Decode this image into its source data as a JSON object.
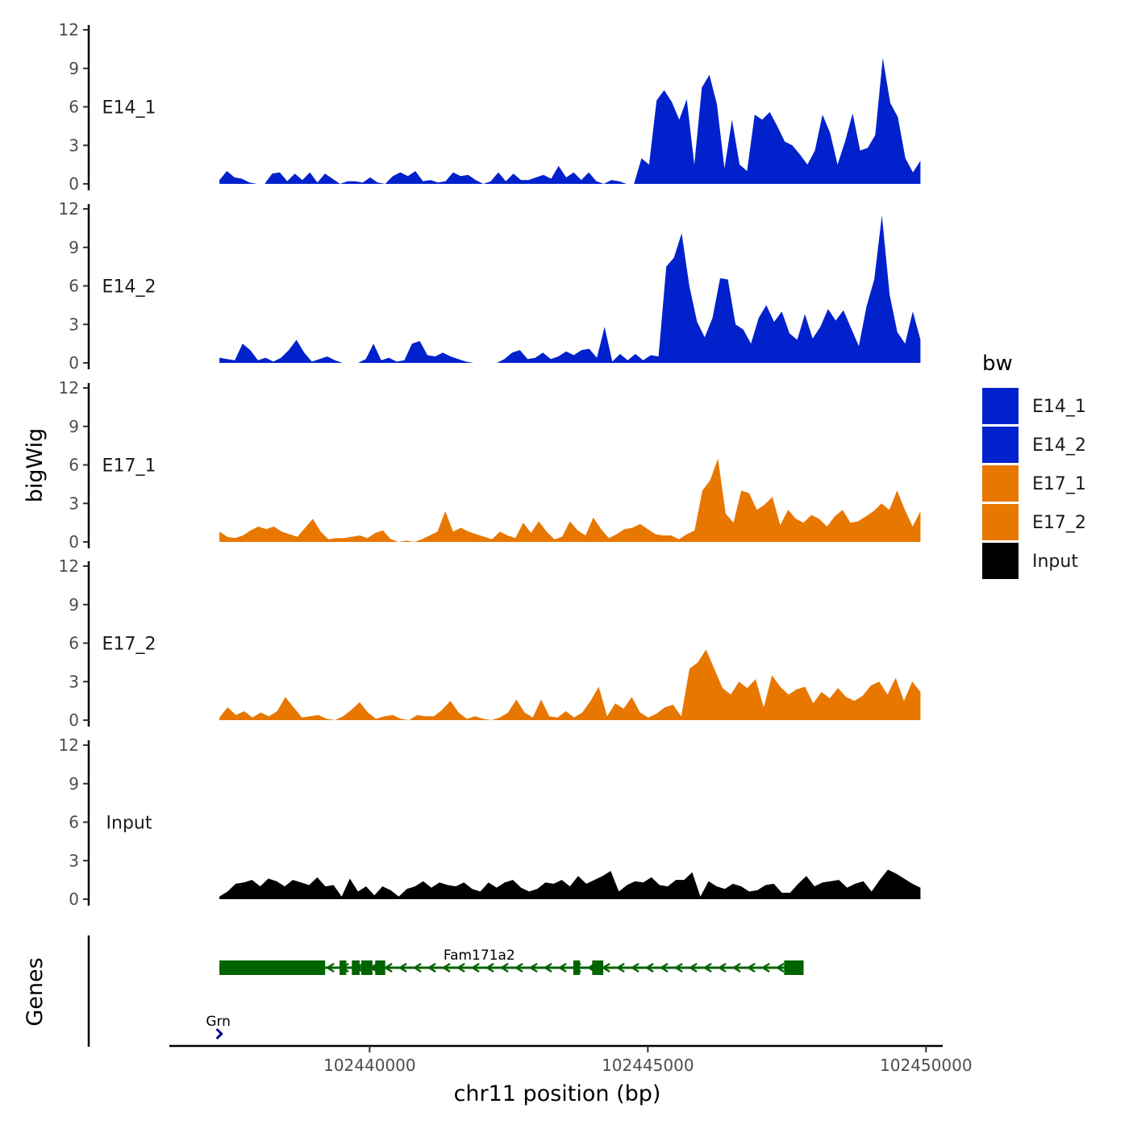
{
  "chart_data": {
    "type": "area",
    "y_axis_title": "bigWig",
    "x_axis_title": "chr11 position (bp)",
    "genes_axis_title": "Genes",
    "xlim": [
      102436400,
      102450300
    ],
    "x_ticks": [
      102440000,
      102445000,
      102450000
    ],
    "x_tick_labels": [
      "102440000",
      "102445000",
      "102450000"
    ],
    "ylim": [
      0,
      12
    ],
    "y_ticks": [
      0,
      3,
      6,
      9,
      12
    ],
    "y_tick_labels": [
      "0",
      "3",
      "6",
      "9",
      "12"
    ],
    "legend": {
      "title": "bw",
      "entries": [
        {
          "label": "E14_1",
          "color": "#0021CC"
        },
        {
          "label": "E14_2",
          "color": "#0021CC"
        },
        {
          "label": "E17_1",
          "color": "#E87700"
        },
        {
          "label": "E17_2",
          "color": "#E87700"
        },
        {
          "label": "Input",
          "color": "#000000"
        }
      ]
    },
    "series": [
      {
        "name": "E14_1",
        "color": "#0021CC",
        "x_start": 102437300,
        "x_end": 102449900,
        "values": [
          0.3,
          1.0,
          0.5,
          0.4,
          0.1,
          0,
          0,
          0.8,
          0.9,
          0.2,
          0.8,
          0.3,
          0.9,
          0.1,
          0.8,
          0.4,
          0,
          0.2,
          0.2,
          0.1,
          0.5,
          0.1,
          0,
          0.6,
          0.9,
          0.6,
          1.0,
          0.2,
          0.3,
          0.1,
          0.2,
          0.9,
          0.6,
          0.7,
          0.3,
          0,
          0.2,
          0.9,
          0.2,
          0.8,
          0.3,
          0.3,
          0.5,
          0.7,
          0.4,
          1.4,
          0.5,
          0.9,
          0.3,
          0.9,
          0.2,
          0,
          0.3,
          0.2,
          0,
          0,
          2.0,
          1.5,
          6.5,
          7.3,
          6.4,
          5.0,
          6.6,
          1.5,
          7.5,
          8.5,
          6.2,
          1.2,
          5.0,
          1.5,
          1.0,
          5.4,
          5.0,
          5.6,
          4.5,
          3.3,
          3.0,
          2.3,
          1.5,
          2.6,
          5.4,
          4.0,
          1.5,
          3.3,
          5.5,
          2.6,
          2.8,
          3.8,
          9.8,
          6.3,
          5.2,
          2.0,
          0.9,
          1.8
        ]
      },
      {
        "name": "E14_2",
        "color": "#0021CC",
        "x_start": 102437300,
        "x_end": 102449900,
        "values": [
          0.4,
          0.3,
          0.2,
          1.5,
          1.0,
          0.2,
          0.4,
          0.1,
          0.4,
          1.0,
          1.8,
          0.8,
          0.1,
          0.3,
          0.5,
          0.2,
          0,
          0,
          0,
          0.3,
          1.5,
          0.2,
          0.4,
          0.1,
          0.2,
          1.5,
          1.7,
          0.6,
          0.5,
          0.8,
          0.5,
          0.3,
          0.1,
          0,
          0,
          0,
          0,
          0.3,
          0.8,
          1.0,
          0.3,
          0.4,
          0.8,
          0.3,
          0.5,
          0.9,
          0.6,
          1.0,
          1.1,
          0.4,
          2.8,
          0.1,
          0.7,
          0.2,
          0.7,
          0.2,
          0.6,
          0.5,
          7.5,
          8.2,
          10.1,
          6.0,
          3.2,
          2.0,
          3.5,
          6.6,
          6.5,
          3.0,
          2.6,
          1.5,
          3.5,
          4.5,
          3.2,
          4.0,
          2.3,
          1.8,
          3.8,
          1.9,
          2.8,
          4.2,
          3.3,
          4.1,
          2.7,
          1.3,
          4.4,
          6.5,
          11.5,
          5.3,
          2.4,
          1.5,
          4.0,
          1.8
        ]
      },
      {
        "name": "E17_1",
        "color": "#E87700",
        "x_start": 102437300,
        "x_end": 102449900,
        "values": [
          0.8,
          0.4,
          0.3,
          0.5,
          0.9,
          1.2,
          1.0,
          1.2,
          0.8,
          0.6,
          0.4,
          1.1,
          1.8,
          0.8,
          0.2,
          0.3,
          0.3,
          0.4,
          0.5,
          0.3,
          0.7,
          0.9,
          0.2,
          0,
          0.1,
          0,
          0.2,
          0.5,
          0.8,
          2.4,
          0.8,
          1.1,
          0.8,
          0.6,
          0.4,
          0.2,
          0.8,
          0.5,
          0.3,
          1.5,
          0.7,
          1.6,
          0.8,
          0.2,
          0.4,
          1.6,
          0.9,
          0.5,
          1.9,
          1.0,
          0.3,
          0.6,
          1.0,
          1.1,
          1.4,
          1.0,
          0.6,
          0.5,
          0.5,
          0.2,
          0.6,
          0.9,
          4.0,
          4.8,
          6.5,
          2.2,
          1.5,
          4.0,
          3.8,
          2.5,
          2.9,
          3.5,
          1.3,
          2.5,
          1.8,
          1.5,
          2.1,
          1.8,
          1.2,
          2.0,
          2.5,
          1.5,
          1.6,
          2.0,
          2.4,
          3.0,
          2.5,
          4.0,
          2.5,
          1.2,
          2.4
        ]
      },
      {
        "name": "E17_2",
        "color": "#E87700",
        "x_start": 102437300,
        "x_end": 102449900,
        "values": [
          0.2,
          1.0,
          0.4,
          0.7,
          0.2,
          0.6,
          0.3,
          0.7,
          1.8,
          1.0,
          0.2,
          0.3,
          0.4,
          0.1,
          0,
          0.3,
          0.8,
          1.4,
          0.6,
          0.1,
          0.3,
          0.4,
          0.1,
          0,
          0.4,
          0.3,
          0.3,
          0.8,
          1.5,
          0.6,
          0.1,
          0.3,
          0.1,
          0,
          0.2,
          0.6,
          1.6,
          0.6,
          0.2,
          1.6,
          0.3,
          0.2,
          0.7,
          0.2,
          0.6,
          1.5,
          2.6,
          0.3,
          1.3,
          0.9,
          1.8,
          0.6,
          0.2,
          0.5,
          1.0,
          1.2,
          0.3,
          4.0,
          4.5,
          5.5,
          4.0,
          2.5,
          2.0,
          3.0,
          2.5,
          3.2,
          1.0,
          3.5,
          2.6,
          2.0,
          2.4,
          2.6,
          1.3,
          2.2,
          1.7,
          2.5,
          1.8,
          1.5,
          1.9,
          2.7,
          3.0,
          2.0,
          3.3,
          1.5,
          3.0,
          2.2
        ]
      },
      {
        "name": "Input",
        "color": "#000000",
        "x_start": 102437300,
        "x_end": 102449900,
        "values": [
          0.2,
          0.6,
          1.2,
          1.3,
          1.5,
          1.0,
          1.6,
          1.4,
          1.0,
          1.5,
          1.3,
          1.1,
          1.7,
          1.0,
          1.1,
          0.2,
          1.6,
          0.6,
          1.0,
          0.3,
          1.0,
          0.7,
          0.2,
          0.8,
          1.0,
          1.4,
          0.9,
          1.3,
          1.1,
          1.0,
          1.3,
          0.8,
          0.6,
          1.3,
          0.9,
          1.3,
          1.5,
          0.9,
          0.6,
          0.8,
          1.3,
          1.2,
          1.5,
          1.0,
          1.8,
          1.2,
          1.5,
          1.8,
          2.2,
          0.6,
          1.1,
          1.4,
          1.3,
          1.7,
          1.1,
          1.0,
          1.5,
          1.5,
          2.1,
          0.2,
          1.4,
          1.0,
          0.8,
          1.2,
          1.0,
          0.6,
          0.7,
          1.1,
          1.2,
          0.5,
          0.5,
          1.2,
          1.8,
          1.0,
          1.3,
          1.4,
          1.5,
          0.9,
          1.2,
          1.4,
          0.6,
          1.5,
          2.3,
          2.0,
          1.6,
          1.2,
          0.9
        ]
      }
    ],
    "genes": [
      {
        "name": "Grn",
        "start": 102437250,
        "end": 102437380,
        "strand": "+",
        "color": "#00008B",
        "exons": []
      },
      {
        "name": "Fam171a2",
        "start": 102437300,
        "end": 102447800,
        "strand": "-",
        "color": "#006400",
        "exons": [
          [
            102437300,
            102439200
          ],
          [
            102439460,
            102439580
          ],
          [
            102439680,
            102439820
          ],
          [
            102439850,
            102440050
          ],
          [
            102440100,
            102440280
          ],
          [
            102443660,
            102443780
          ],
          [
            102444000,
            102444200
          ],
          [
            102447450,
            102447800
          ]
        ]
      }
    ]
  }
}
